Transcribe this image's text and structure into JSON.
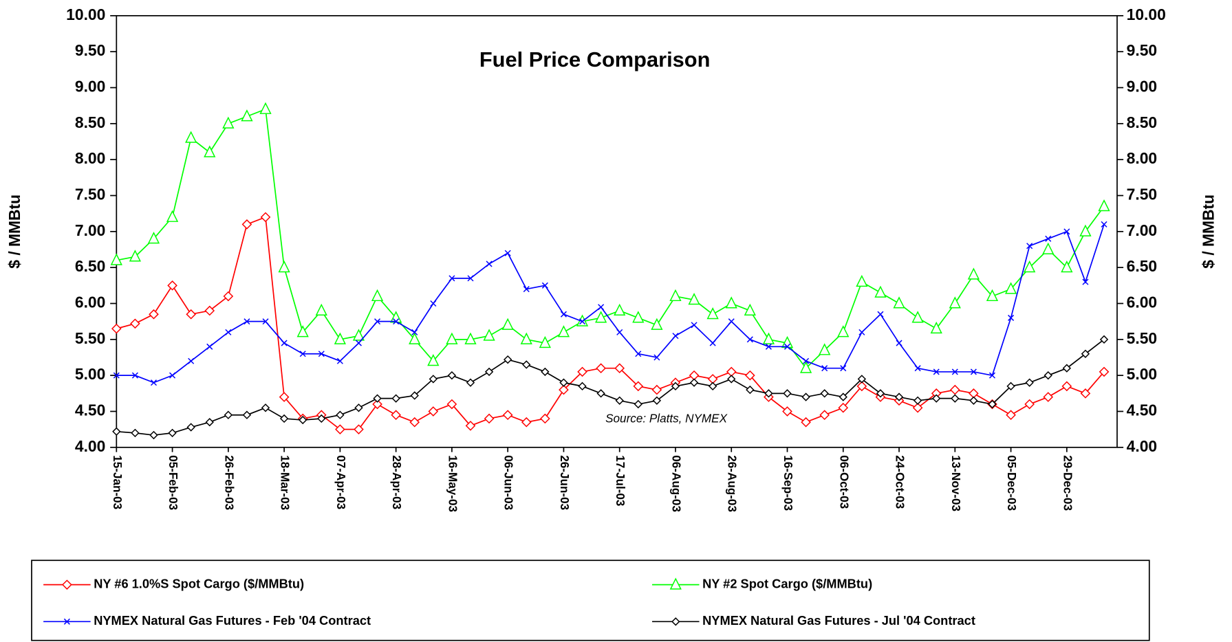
{
  "chart_data": {
    "type": "line",
    "title": "Fuel Price Comparison",
    "ylabel": "$ / MMBtu",
    "y2label": "$ / MMBtu",
    "annotation": "Source: Platts, NYMEX",
    "categories": [
      "15-Jan-03",
      null,
      null,
      "05-Feb-03",
      null,
      null,
      "26-Feb-03",
      null,
      null,
      "18-Mar-03",
      null,
      null,
      "07-Apr-03",
      null,
      null,
      "28-Apr-03",
      null,
      null,
      "16-May-03",
      null,
      null,
      "06-Jun-03",
      null,
      null,
      "26-Jun-03",
      null,
      null,
      "17-Jul-03",
      null,
      null,
      "06-Aug-03",
      null,
      null,
      "26-Aug-03",
      null,
      null,
      "16-Sep-03",
      null,
      null,
      "06-Oct-03",
      null,
      null,
      "24-Oct-03",
      null,
      null,
      "13-Nov-03",
      null,
      null,
      "05-Dec-03",
      null,
      null,
      "29-Dec-03",
      null,
      null
    ],
    "ylim": [
      4,
      10
    ],
    "yticks": [
      {
        "value": 4,
        "label": "4.00"
      },
      {
        "value": 4.5,
        "label": "4.50"
      },
      {
        "value": 5,
        "label": "5.00"
      },
      {
        "value": 5.5,
        "label": "5.50"
      },
      {
        "value": 6,
        "label": "6.00"
      },
      {
        "value": 6.5,
        "label": "6.50"
      },
      {
        "value": 7,
        "label": "7.00"
      },
      {
        "value": 7.5,
        "label": "7.50"
      },
      {
        "value": 8,
        "label": "8.00"
      },
      {
        "value": 8.5,
        "label": "8.50"
      },
      {
        "value": 9,
        "label": "9.00"
      },
      {
        "value": 9.5,
        "label": "9.50"
      },
      {
        "value": 10,
        "label": "10.00"
      }
    ],
    "y2lim": [
      4,
      10
    ],
    "y2ticks": [
      {
        "value": 4,
        "label": "4.00"
      },
      {
        "value": 4.5,
        "label": "4.50"
      },
      {
        "value": 5,
        "label": "5.00"
      },
      {
        "value": 5.5,
        "label": "5.50"
      },
      {
        "value": 6,
        "label": "6.00"
      },
      {
        "value": 6.5,
        "label": "6.50"
      },
      {
        "value": 7,
        "label": "7.00"
      },
      {
        "value": 7.5,
        "label": "7.50"
      },
      {
        "value": 8,
        "label": "8.00"
      },
      {
        "value": 8.5,
        "label": "8.50"
      },
      {
        "value": 9,
        "label": "9.00"
      },
      {
        "value": 9.5,
        "label": "9.50"
      },
      {
        "value": 10,
        "label": "10.00"
      }
    ],
    "grid": false,
    "legend": "bottom",
    "series": [
      {
        "name": "NY #6 1.0%S Spot Cargo ($/MMBtu)",
        "color": "#ff0000",
        "marker": "diamond",
        "values": [
          5.65,
          5.72,
          5.85,
          6.25,
          5.85,
          5.9,
          6.1,
          7.1,
          7.2,
          4.7,
          4.4,
          4.45,
          4.25,
          4.25,
          4.6,
          4.45,
          4.35,
          4.5,
          4.6,
          4.3,
          4.4,
          4.45,
          4.35,
          4.4,
          4.8,
          5.05,
          5.1,
          5.1,
          4.85,
          4.8,
          4.9,
          5.0,
          4.95,
          5.05,
          5.0,
          4.7,
          4.5,
          4.35,
          4.45,
          4.55,
          4.85,
          4.7,
          4.65,
          4.55,
          4.75,
          4.8,
          4.75,
          4.6,
          4.45,
          4.6,
          4.7,
          4.85,
          4.75,
          5.05
        ]
      },
      {
        "name": "NY #2 Spot Cargo ($/MMBtu)",
        "color": "#00ff00",
        "marker": "triangle",
        "values": [
          6.6,
          6.65,
          6.9,
          7.2,
          8.3,
          8.1,
          8.5,
          8.6,
          8.7,
          6.5,
          5.6,
          5.9,
          5.5,
          5.55,
          6.1,
          5.8,
          5.5,
          5.2,
          5.5,
          5.5,
          5.55,
          5.7,
          5.5,
          5.45,
          5.6,
          5.75,
          5.8,
          5.9,
          5.8,
          5.7,
          6.1,
          6.05,
          5.85,
          6.0,
          5.9,
          5.5,
          5.45,
          5.1,
          5.35,
          5.6,
          6.3,
          6.15,
          6.0,
          5.8,
          5.65,
          6.0,
          6.4,
          6.1,
          6.2,
          6.5,
          6.75,
          6.5,
          7.0,
          7.35
        ]
      },
      {
        "name": "NYMEX Natural Gas Futures - Feb '04 Contract",
        "color": "#0000ff",
        "marker": "x",
        "values": [
          5.0,
          5.0,
          4.9,
          5.0,
          5.2,
          5.4,
          5.6,
          5.75,
          5.75,
          5.45,
          5.3,
          5.3,
          5.2,
          5.45,
          5.75,
          5.75,
          5.6,
          6.0,
          6.35,
          6.35,
          6.55,
          6.7,
          6.2,
          6.25,
          5.85,
          5.75,
          5.95,
          5.6,
          5.3,
          5.25,
          5.55,
          5.7,
          5.45,
          5.75,
          5.5,
          5.4,
          5.4,
          5.2,
          5.1,
          5.1,
          5.6,
          5.85,
          5.45,
          5.1,
          5.05,
          5.05,
          5.05,
          5.0,
          5.8,
          6.8,
          6.9,
          7.0,
          6.3,
          7.1
        ]
      },
      {
        "name": "NYMEX Natural Gas Futures - Jul '04 Contract",
        "color": "#000000",
        "marker": "circle",
        "values": [
          4.22,
          4.2,
          4.17,
          4.2,
          4.28,
          4.35,
          4.45,
          4.45,
          4.55,
          4.4,
          4.38,
          4.4,
          4.45,
          4.55,
          4.68,
          4.68,
          4.72,
          4.95,
          5.0,
          4.9,
          5.05,
          5.22,
          5.15,
          5.05,
          4.9,
          4.85,
          4.75,
          4.65,
          4.6,
          4.65,
          4.85,
          4.9,
          4.85,
          4.95,
          4.8,
          4.75,
          4.75,
          4.7,
          4.75,
          4.7,
          4.95,
          4.75,
          4.7,
          4.65,
          4.68,
          4.68,
          4.65,
          4.6,
          4.85,
          4.9,
          5.0,
          5.1,
          5.3,
          5.5
        ]
      }
    ]
  }
}
